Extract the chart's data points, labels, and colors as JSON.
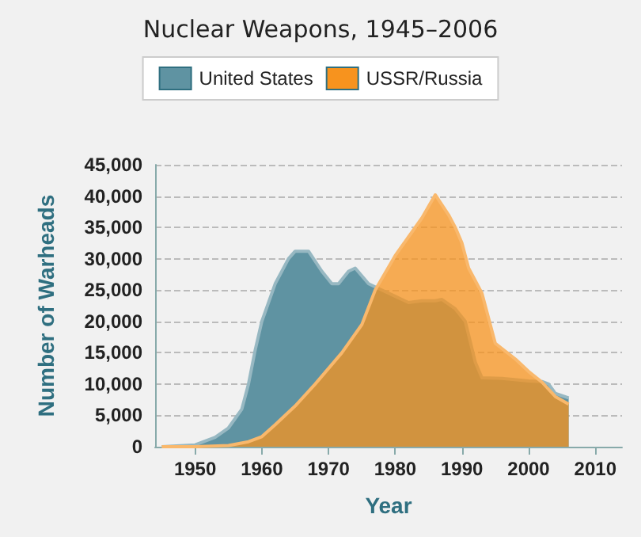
{
  "chart_data": {
    "type": "area",
    "title": "Nuclear Weapons, 1945–2006",
    "xlabel": "Year",
    "ylabel": "Number of Warheads",
    "xlim": [
      1944,
      2014
    ],
    "xticks": [
      1950,
      1960,
      1970,
      1980,
      1990,
      2000,
      2010
    ],
    "ylim": [
      0,
      45000
    ],
    "yticks": [
      0,
      {
        "value": 5000,
        "label": "5,000"
      },
      {
        "value": 10000,
        "label": "10,000"
      },
      {
        "value": 15000,
        "label": "15,000"
      },
      {
        "value": 20000,
        "label": "20,000"
      },
      {
        "value": 25000,
        "label": "25,000"
      },
      {
        "value": 30000,
        "label": "30,000"
      },
      {
        "value": 35000,
        "label": "35,000"
      },
      {
        "value": 40000,
        "label": "40,000"
      },
      {
        "value": 45000,
        "label": "45,000"
      }
    ],
    "grid": "y",
    "legend": "top",
    "marker": "none",
    "series": [
      {
        "name": "United States",
        "color": "#5f93a2",
        "x": [
          1945,
          1950,
          1953,
          1955,
          1957,
          1958,
          1959,
          1960,
          1962,
          1964,
          1965,
          1967,
          1969,
          1970.5,
          1971.5,
          1973,
          1974,
          1976,
          1978,
          1980,
          1982,
          1984,
          1986,
          1987,
          1989,
          1990.5,
          1992,
          1993,
          1996,
          2000,
          2002,
          2003,
          2004,
          2006
        ],
        "values": [
          0,
          300,
          1500,
          3000,
          6000,
          10000,
          15400,
          20000,
          26000,
          30000,
          31200,
          31200,
          28000,
          26000,
          26000,
          28000,
          28500,
          26000,
          25000,
          24000,
          23000,
          23300,
          23300,
          23500,
          22000,
          20000,
          13500,
          11000,
          10900,
          10500,
          10400,
          10000,
          8500,
          7800
        ]
      },
      {
        "name": "USSR/Russia",
        "color": "#f7931e",
        "x": [
          1945,
          1950,
          1955,
          1958,
          1960,
          1962,
          1965,
          1968,
          1970,
          1972,
          1975,
          1977,
          1980,
          1982,
          1984,
          1986,
          1988,
          1989,
          1990,
          1991,
          1993,
          1995,
          1998,
          2000,
          2002,
          2004,
          2006
        ],
        "values": [
          0,
          0,
          200,
          800,
          1600,
          3500,
          6500,
          10000,
          12500,
          15000,
          19500,
          25000,
          30500,
          33500,
          36500,
          40200,
          37000,
          35000,
          32500,
          28500,
          24500,
          16500,
          14000,
          12000,
          10300,
          8000,
          6800
        ]
      }
    ]
  }
}
